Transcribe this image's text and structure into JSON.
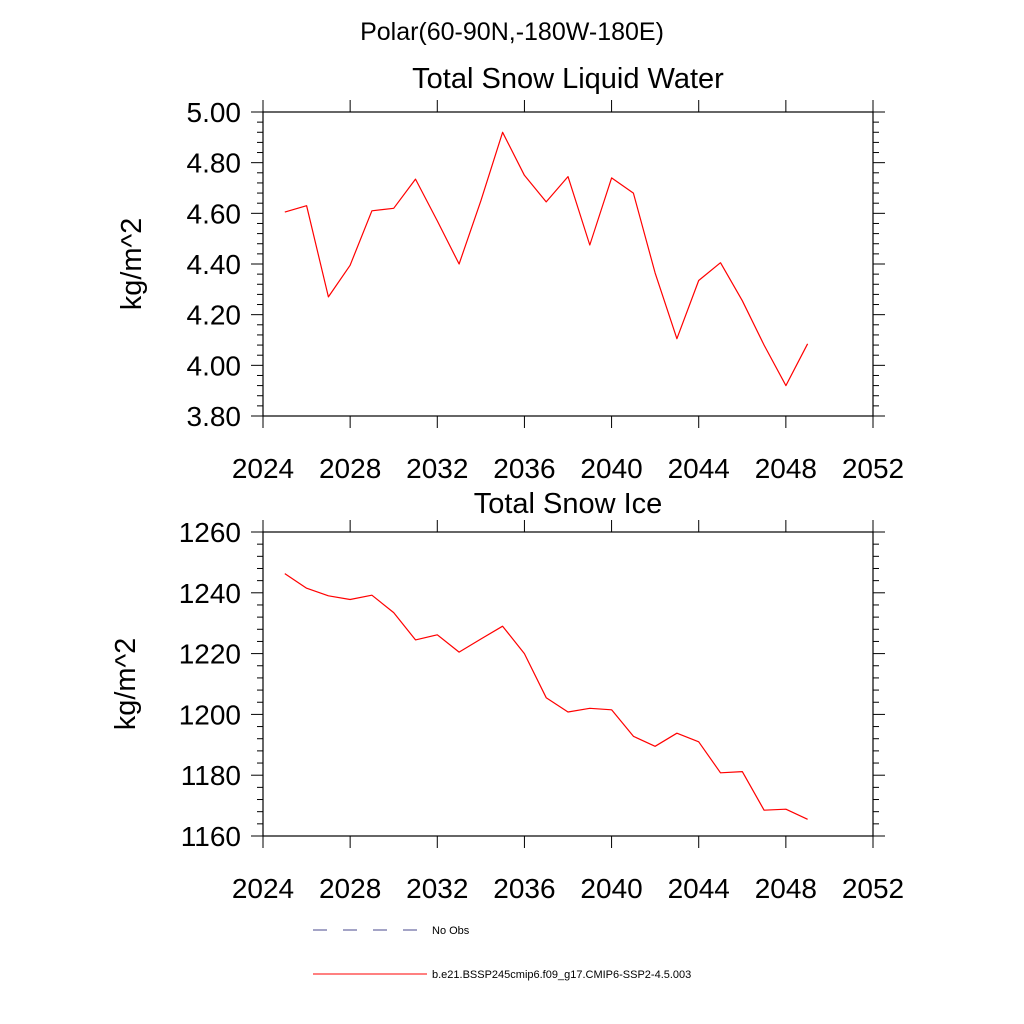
{
  "figure": {
    "super_title": "Polar(60-90N,-180W-180E)"
  },
  "chart_data": [
    {
      "type": "line",
      "title": "Total Snow Liquid Water",
      "xlabel": "",
      "ylabel": "kg/m^2",
      "xlim": [
        2024,
        2052
      ],
      "ylim": [
        3.8,
        5.0
      ],
      "x_ticks": [
        2024,
        2028,
        2032,
        2036,
        2040,
        2044,
        2048,
        2052
      ],
      "x_tick_labels": [
        "2024",
        "2028",
        "2032",
        "2036",
        "2040",
        "2044",
        "2048",
        "2052"
      ],
      "y_ticks": [
        3.8,
        4.0,
        4.2,
        4.4,
        4.6,
        4.8,
        5.0
      ],
      "y_tick_labels": [
        "3.80",
        "4.00",
        "4.20",
        "4.40",
        "4.60",
        "4.80",
        "5.00"
      ],
      "grid": false,
      "series": [
        {
          "name": "b.e21.BSSP245cmip6.f09_g17.CMIP6-SSP2-4.5.003",
          "color": "#ff0000",
          "x": [
            2025,
            2026,
            2027,
            2028,
            2029,
            2030,
            2031,
            2032,
            2033,
            2034,
            2035,
            2036,
            2037,
            2038,
            2039,
            2040,
            2041,
            2042,
            2043,
            2044,
            2045,
            2046,
            2047,
            2048,
            2049
          ],
          "values": [
            4.605,
            4.63,
            4.27,
            4.395,
            4.61,
            4.62,
            4.735,
            4.57,
            4.4,
            4.65,
            4.92,
            4.75,
            4.645,
            4.745,
            4.475,
            4.74,
            4.68,
            4.365,
            4.105,
            4.335,
            4.405,
            4.255,
            4.08,
            3.92,
            4.085
          ]
        }
      ]
    },
    {
      "type": "line",
      "title": "Total Snow Ice",
      "xlabel": "",
      "ylabel": "kg/m^2",
      "xlim": [
        2024,
        2052
      ],
      "ylim": [
        1160,
        1260
      ],
      "x_ticks": [
        2024,
        2028,
        2032,
        2036,
        2040,
        2044,
        2048,
        2052
      ],
      "x_tick_labels": [
        "2024",
        "2028",
        "2032",
        "2036",
        "2040",
        "2044",
        "2048",
        "2052"
      ],
      "y_ticks": [
        1160,
        1180,
        1200,
        1220,
        1240,
        1260
      ],
      "y_tick_labels": [
        "1160",
        "1180",
        "1200",
        "1220",
        "1240",
        "1260"
      ],
      "grid": false,
      "series": [
        {
          "name": "b.e21.BSSP245cmip6.f09_g17.CMIP6-SSP2-4.5.003",
          "color": "#ff0000",
          "x": [
            2025,
            2026,
            2027,
            2028,
            2029,
            2030,
            2031,
            2032,
            2033,
            2034,
            2035,
            2036,
            2037,
            2038,
            2039,
            2040,
            2041,
            2042,
            2043,
            2044,
            2045,
            2046,
            2047,
            2048,
            2049
          ],
          "values": [
            1246.3,
            1241.5,
            1239.0,
            1237.8,
            1239.2,
            1233.5,
            1224.5,
            1226.2,
            1220.5,
            1224.8,
            1229.0,
            1220.0,
            1205.5,
            1200.8,
            1202.0,
            1201.5,
            1192.8,
            1189.5,
            1193.8,
            1191.0,
            1180.8,
            1181.2,
            1168.5,
            1168.8,
            1165.5
          ]
        }
      ]
    }
  ],
  "legend": {
    "placement": "bottom-center",
    "entries": [
      {
        "label": "No Obs",
        "style": "dashed",
        "color": "#4a4a8c"
      },
      {
        "label": "b.e21.BSSP245cmip6.f09_g17.CMIP6-SSP2-4.5.003",
        "style": "solid",
        "color": "#ff0000"
      }
    ]
  }
}
